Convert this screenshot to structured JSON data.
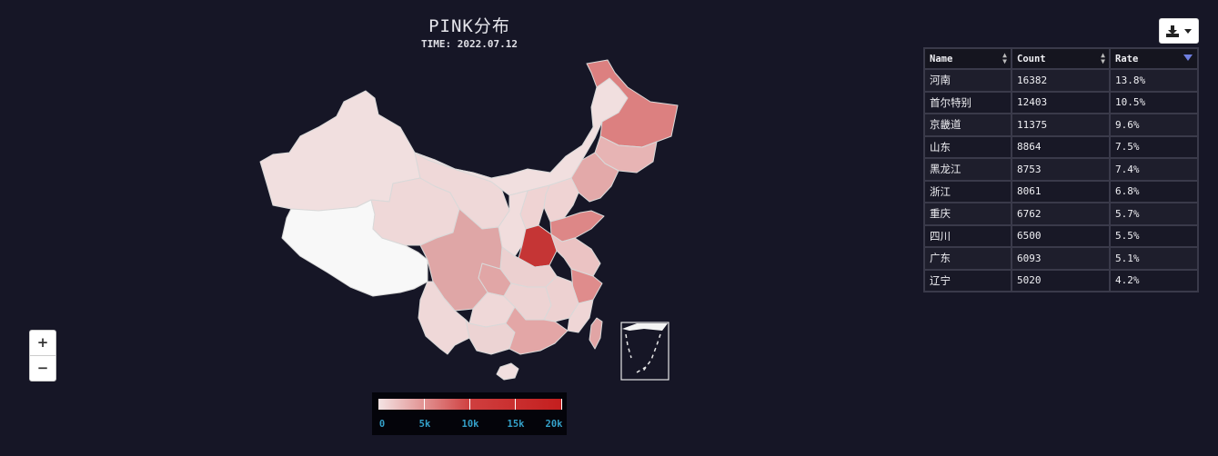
{
  "map": {
    "title": "PINK分布",
    "time": "TIME: 2022.07.12"
  },
  "legend": {
    "labels": [
      "0",
      "5k",
      "10k",
      "15k",
      "20k"
    ],
    "min": 0,
    "max": 20000,
    "color_low": "#f4e4e4",
    "color_high": "#c41e1e"
  },
  "zoom": {
    "in_label": "+",
    "out_label": "−"
  },
  "download": {
    "icon": "download-icon"
  },
  "table": {
    "headers": [
      "Name",
      "Count",
      "Rate"
    ],
    "sort": {
      "column": "Rate",
      "direction": "desc"
    },
    "rows": [
      {
        "name": "河南",
        "count": "16382",
        "rate": "13.8%"
      },
      {
        "name": "首尔特别",
        "count": "12403",
        "rate": "10.5%"
      },
      {
        "name": "京畿道",
        "count": "11375",
        "rate": "9.6%"
      },
      {
        "name": "山东",
        "count": "8864",
        "rate": "7.5%"
      },
      {
        "name": "黑龙江",
        "count": "8753",
        "rate": "7.4%"
      },
      {
        "name": "浙江",
        "count": "8061",
        "rate": "6.8%"
      },
      {
        "name": "重庆",
        "count": "6762",
        "rate": "5.7%"
      },
      {
        "name": "四川",
        "count": "6500",
        "rate": "5.5%"
      },
      {
        "name": "广东",
        "count": "6093",
        "rate": "5.1%"
      },
      {
        "name": "辽宁",
        "count": "5020",
        "rate": "4.2%"
      }
    ]
  },
  "colors": {
    "background": "#161626",
    "highest": "#c53535",
    "high": "#d97878",
    "mid": "#dc9f9f",
    "low": "#e8c3c3",
    "lowest": "#f1dfdf",
    "none": "#f8f8f8"
  }
}
